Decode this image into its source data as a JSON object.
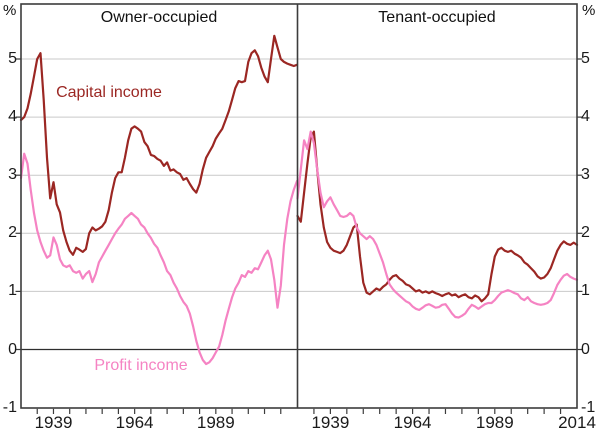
{
  "chart_data": {
    "type": "line",
    "title": "",
    "unit": "%",
    "ylim": [
      -1,
      6
    ],
    "yticks": [
      5,
      4,
      3,
      2,
      1,
      0,
      -1
    ],
    "x_range": [
      1929,
      2014
    ],
    "x_step_years": 1,
    "xtick_every_years": 5,
    "xtick_first_year": 1934,
    "grid": true,
    "zero_line": true,
    "colors": {
      "capital": "#9b2723",
      "profit": "#f583c3",
      "grid": "#c9c9c9",
      "frame": "#3c3c3c",
      "zero": "#2e2e2e",
      "text": "#1a1a1a"
    },
    "series_labels": {
      "capital": "Capital income",
      "profit": "Profit income"
    },
    "panels": [
      {
        "title": "Owner-occupied",
        "xtick_label_years": [
          1939,
          1964,
          1989
        ],
        "series": [
          {
            "name": "Capital income",
            "color": "#9b2723",
            "values": [
              3.95,
              4.0,
              4.15,
              4.4,
              4.7,
              5.0,
              5.1,
              4.3,
              3.3,
              2.6,
              2.88,
              2.5,
              2.36,
              2.05,
              1.85,
              1.7,
              1.63,
              1.75,
              1.72,
              1.68,
              1.73,
              2.0,
              2.1,
              2.05,
              2.08,
              2.12,
              2.2,
              2.4,
              2.7,
              2.95,
              3.05,
              3.05,
              3.3,
              3.6,
              3.8,
              3.84,
              3.8,
              3.75,
              3.57,
              3.5,
              3.35,
              3.33,
              3.28,
              3.25,
              3.16,
              3.22,
              3.08,
              3.1,
              3.05,
              3.02,
              2.92,
              2.95,
              2.85,
              2.76,
              2.7,
              2.85,
              3.1,
              3.3,
              3.4,
              3.5,
              3.63,
              3.72,
              3.8,
              3.95,
              4.1,
              4.3,
              4.5,
              4.62,
              4.6,
              4.62,
              4.95,
              5.1,
              5.15,
              5.05,
              4.85,
              4.7,
              4.6,
              5.0,
              5.4,
              5.2,
              5.0,
              4.95,
              4.92,
              4.9,
              4.88,
              4.9
            ]
          },
          {
            "name": "Profit income",
            "color": "#f583c3",
            "values": [
              2.95,
              3.37,
              3.2,
              2.75,
              2.35,
              2.05,
              1.85,
              1.7,
              1.58,
              1.62,
              1.93,
              1.8,
              1.55,
              1.45,
              1.42,
              1.45,
              1.35,
              1.32,
              1.35,
              1.22,
              1.3,
              1.35,
              1.16,
              1.3,
              1.5,
              1.6,
              1.7,
              1.8,
              1.9,
              2.0,
              2.08,
              2.15,
              2.25,
              2.3,
              2.35,
              2.3,
              2.25,
              2.15,
              2.1,
              2.0,
              1.92,
              1.82,
              1.75,
              1.62,
              1.5,
              1.35,
              1.28,
              1.15,
              1.05,
              0.92,
              0.82,
              0.75,
              0.62,
              0.4,
              0.15,
              -0.05,
              -0.18,
              -0.25,
              -0.22,
              -0.15,
              -0.05,
              0.05,
              0.25,
              0.5,
              0.7,
              0.9,
              1.05,
              1.15,
              1.28,
              1.25,
              1.35,
              1.32,
              1.4,
              1.38,
              1.5,
              1.62,
              1.7,
              1.55,
              1.2,
              0.72,
              1.1,
              1.8,
              2.25,
              2.55,
              2.75,
              2.9
            ]
          }
        ]
      },
      {
        "title": "Tenant-occupied",
        "xtick_label_years": [
          1939,
          1964,
          1989,
          2014
        ],
        "series": [
          {
            "name": "Capital income",
            "color": "#9b2723",
            "values": [
              2.3,
              2.2,
              2.7,
              3.2,
              3.65,
              3.75,
              3.1,
              2.5,
              2.1,
              1.85,
              1.75,
              1.7,
              1.68,
              1.66,
              1.7,
              1.8,
              1.95,
              2.1,
              2.15,
              1.6,
              1.15,
              0.98,
              0.95,
              1.0,
              1.05,
              1.02,
              1.08,
              1.12,
              1.2,
              1.26,
              1.28,
              1.22,
              1.18,
              1.12,
              1.1,
              1.05,
              1.0,
              1.02,
              0.98,
              1.0,
              0.97,
              1.0,
              0.97,
              0.95,
              0.92,
              0.95,
              0.97,
              0.93,
              0.95,
              0.9,
              0.93,
              0.95,
              0.9,
              0.88,
              0.93,
              0.9,
              0.83,
              0.88,
              0.95,
              1.3,
              1.6,
              1.72,
              1.75,
              1.7,
              1.68,
              1.7,
              1.65,
              1.62,
              1.58,
              1.5,
              1.46,
              1.4,
              1.34,
              1.26,
              1.22,
              1.24,
              1.3,
              1.4,
              1.55,
              1.7,
              1.8,
              1.86,
              1.82,
              1.8,
              1.84,
              1.8
            ]
          },
          {
            "name": "Profit income",
            "color": "#f583c3",
            "values": [
              2.6,
              3.1,
              3.6,
              3.45,
              3.75,
              3.55,
              3.1,
              2.7,
              2.45,
              2.55,
              2.62,
              2.5,
              2.4,
              2.3,
              2.28,
              2.3,
              2.35,
              2.3,
              2.1,
              2.0,
              1.95,
              1.9,
              1.95,
              1.9,
              1.8,
              1.65,
              1.5,
              1.3,
              1.12,
              1.04,
              0.98,
              0.93,
              0.88,
              0.83,
              0.8,
              0.74,
              0.7,
              0.68,
              0.72,
              0.76,
              0.78,
              0.75,
              0.72,
              0.73,
              0.77,
              0.78,
              0.7,
              0.62,
              0.56,
              0.55,
              0.58,
              0.62,
              0.7,
              0.77,
              0.74,
              0.7,
              0.74,
              0.78,
              0.8,
              0.8,
              0.85,
              0.92,
              0.98,
              1.0,
              1.02,
              1.0,
              0.97,
              0.95,
              0.88,
              0.85,
              0.9,
              0.83,
              0.8,
              0.78,
              0.77,
              0.78,
              0.8,
              0.85,
              0.97,
              1.11,
              1.2,
              1.27,
              1.3,
              1.25,
              1.22,
              1.2
            ]
          }
        ]
      }
    ]
  }
}
